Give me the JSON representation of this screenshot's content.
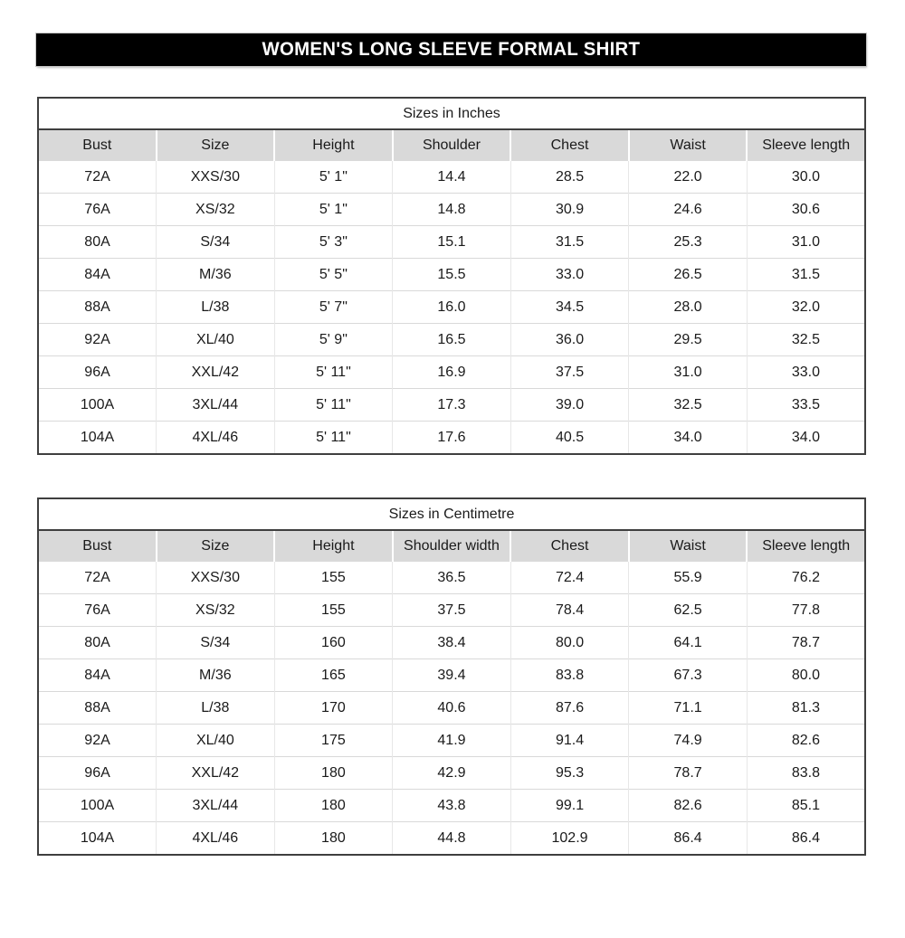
{
  "banner": {
    "title": "WOMEN'S LONG SLEEVE FORMAL SHIRT"
  },
  "tables": [
    {
      "caption": "Sizes in Inches",
      "headers": [
        "Bust",
        "Size",
        "Height",
        "Shoulder",
        "Chest",
        "Waist",
        "Sleeve length"
      ],
      "rows": [
        [
          "72A",
          "XXS/30",
          "5' 1\"",
          "14.4",
          "28.5",
          "22.0",
          "30.0"
        ],
        [
          "76A",
          "XS/32",
          "5' 1\"",
          "14.8",
          "30.9",
          "24.6",
          "30.6"
        ],
        [
          "80A",
          "S/34",
          "5' 3\"",
          "15.1",
          "31.5",
          "25.3",
          "31.0"
        ],
        [
          "84A",
          "M/36",
          "5' 5\"",
          "15.5",
          "33.0",
          "26.5",
          "31.5"
        ],
        [
          "88A",
          "L/38",
          "5' 7\"",
          "16.0",
          "34.5",
          "28.0",
          "32.0"
        ],
        [
          "92A",
          "XL/40",
          "5' 9\"",
          "16.5",
          "36.0",
          "29.5",
          "32.5"
        ],
        [
          "96A",
          "XXL/42",
          "5' 11\"",
          "16.9",
          "37.5",
          "31.0",
          "33.0"
        ],
        [
          "100A",
          "3XL/44",
          "5' 11\"",
          "17.3",
          "39.0",
          "32.5",
          "33.5"
        ],
        [
          "104A",
          "4XL/46",
          "5' 11\"",
          "17.6",
          "40.5",
          "34.0",
          "34.0"
        ]
      ]
    },
    {
      "caption": "Sizes in Centimetre",
      "headers": [
        "Bust",
        "Size",
        "Height",
        "Shoulder width",
        "Chest",
        "Waist",
        "Sleeve length"
      ],
      "rows": [
        [
          "72A",
          "XXS/30",
          "155",
          "36.5",
          "72.4",
          "55.9",
          "76.2"
        ],
        [
          "76A",
          "XS/32",
          "155",
          "37.5",
          "78.4",
          "62.5",
          "77.8"
        ],
        [
          "80A",
          "S/34",
          "160",
          "38.4",
          "80.0",
          "64.1",
          "78.7"
        ],
        [
          "84A",
          "M/36",
          "165",
          "39.4",
          "83.8",
          "67.3",
          "80.0"
        ],
        [
          "88A",
          "L/38",
          "170",
          "40.6",
          "87.6",
          "71.1",
          "81.3"
        ],
        [
          "92A",
          "XL/40",
          "175",
          "41.9",
          "91.4",
          "74.9",
          "82.6"
        ],
        [
          "96A",
          "XXL/42",
          "180",
          "42.9",
          "95.3",
          "78.7",
          "83.8"
        ],
        [
          "100A",
          "3XL/44",
          "180",
          "43.8",
          "99.1",
          "82.6",
          "85.1"
        ],
        [
          "104A",
          "4XL/46",
          "180",
          "44.8",
          "102.9",
          "86.4",
          "86.4"
        ]
      ]
    }
  ],
  "colors": {
    "banner_bg": "#000000",
    "banner_text": "#ffffff",
    "header_bg": "#d9d9d9",
    "outer_border": "#3f3f3f",
    "row_line": "#d9d9d9",
    "column_line": "#e7e7e7"
  }
}
